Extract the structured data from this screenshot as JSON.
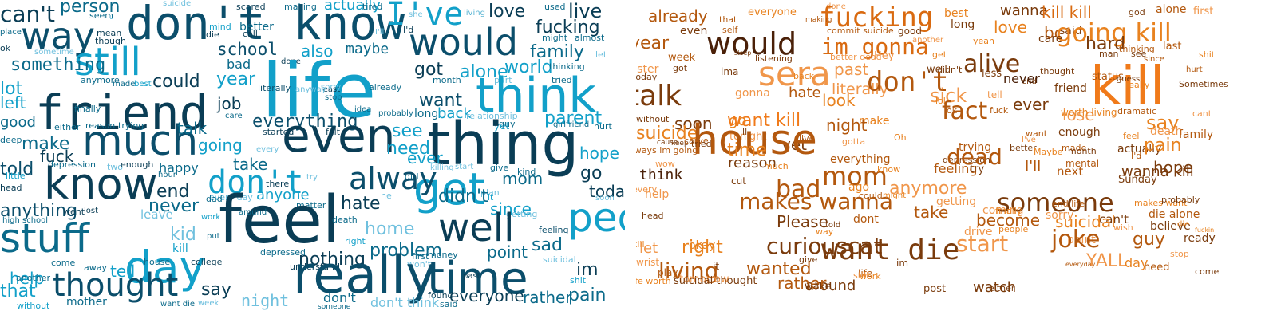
{
  "left_cloud": [
    [
      "person",
      "#0b6a8a"
    ],
    [
      "can't",
      "#0a3d55"
    ],
    [
      "seem",
      "#0b6a8a"
    ],
    [
      "u",
      "#5bb5d4"
    ],
    [
      "suicide",
      "#6fc0de"
    ],
    [
      "scared",
      "#0a3d55"
    ],
    [
      "making",
      "#0b6a8a"
    ],
    [
      "actually",
      "#12a0c9"
    ],
    [
      "tired",
      "#0b6a8a"
    ],
    [
      "she",
      "#6fc0de"
    ],
    [
      "living",
      "#5bb5d4"
    ],
    [
      "used",
      "#0b6a8a"
    ],
    [
      "love",
      "#0a3d55"
    ],
    [
      "live",
      "#0a3d55"
    ],
    [
      "way",
      "#0b4e6b"
    ],
    [
      "don't know",
      "#0b4e6b"
    ],
    [
      "I've",
      "#12a0c9"
    ],
    [
      "would",
      "#0b4e6b"
    ],
    [
      "fucking",
      "#0a3d55"
    ],
    [
      "still",
      "#12a0c9"
    ],
    [
      "place",
      "#0b6a8a"
    ],
    [
      "mean",
      "#0a3d55"
    ],
    [
      "though",
      "#0a3d55"
    ],
    [
      "mind",
      "#12a0c9"
    ],
    [
      "die",
      "#0a3d55"
    ],
    [
      "better",
      "#0b6a8a"
    ],
    [
      "call",
      "#0a3d55"
    ],
    [
      "I'll",
      "#6fc0de"
    ],
    [
      "I'd",
      "#0a3d55"
    ],
    [
      "might",
      "#0b6a8a"
    ],
    [
      "almost",
      "#0b6a8a"
    ],
    [
      "ok",
      "#0a3d55"
    ],
    [
      "sometime",
      "#6fc0de"
    ],
    [
      "family",
      "#0b6a8a"
    ],
    [
      "let",
      "#6fc0de"
    ],
    [
      "something",
      "#0b6a8a"
    ],
    [
      "school",
      "#0b4e6b"
    ],
    [
      "also",
      "#12a0c9"
    ],
    [
      "maybe",
      "#0b6a8a"
    ],
    [
      "bad",
      "#0b6a8a"
    ],
    [
      "done",
      "#0a3d55"
    ],
    [
      "world",
      "#12a0c9"
    ],
    [
      "lot",
      "#12a0c9"
    ],
    [
      "anymore",
      "#0b6a8a"
    ],
    [
      "made",
      "#0b6a8a"
    ],
    [
      "best",
      "#12a0c9"
    ],
    [
      "could",
      "#0a3d55"
    ],
    [
      "life",
      "#12a0c9"
    ],
    [
      "got",
      "#0a3d55"
    ],
    [
      "alone",
      "#12a0c9"
    ],
    [
      "thinking",
      "#0b6a8a"
    ],
    [
      "left",
      "#12a0c9"
    ],
    [
      "literally",
      "#0b4e6b"
    ],
    [
      "least",
      "#0a3d55"
    ],
    [
      "already",
      "#0b6a8a"
    ],
    [
      "part",
      "#6fc0de"
    ],
    [
      "tried",
      "#0b6a8a"
    ],
    [
      "friend",
      "#0a3d55"
    ],
    [
      "year",
      "#12a0c9"
    ],
    [
      "sorry",
      "#6fc0de"
    ],
    [
      "month",
      "#0b6a8a"
    ],
    [
      "think",
      "#12a0c9"
    ],
    [
      "finally",
      "#0b6a8a"
    ],
    [
      "job",
      "#0a3d55"
    ],
    [
      "anyway",
      "#6fc0de"
    ],
    [
      "stop",
      "#0b6a8a"
    ],
    [
      "want",
      "#0b4e6b"
    ],
    [
      "good",
      "#0b6a8a"
    ],
    [
      "either",
      "#0b6a8a"
    ],
    [
      "reason",
      "#0b6a8a"
    ],
    [
      "trying",
      "#0b6a8a"
    ],
    [
      "care",
      "#0b6a8a"
    ],
    [
      "idea",
      "#0b6a8a"
    ],
    [
      "probably",
      "#0b6a8a"
    ],
    [
      "long",
      "#0b6a8a"
    ],
    [
      "back",
      "#12a0c9"
    ],
    [
      "relationship",
      "#6fc0de"
    ],
    [
      "parent",
      "#12a0c9"
    ],
    [
      "much",
      "#0b4e6b"
    ],
    [
      "everything",
      "#0b4e6b"
    ],
    [
      "started",
      "#0a3d55"
    ],
    [
      "felt",
      "#0a3d55"
    ],
    [
      "guy",
      "#0b6a8a"
    ],
    [
      "yet",
      "#12a0c9"
    ],
    [
      "girlfriend",
      "#0b6a8a"
    ],
    [
      "hurt",
      "#0b6a8a"
    ],
    [
      "deep",
      "#0b6a8a"
    ],
    [
      "talk",
      "#0b6a8a"
    ],
    [
      "see",
      "#12a0c9"
    ],
    [
      "make",
      "#0b6a8a"
    ],
    [
      "even",
      "#0a3d55"
    ],
    [
      "thing",
      "#0a3d55"
    ],
    [
      "going",
      "#12a0c9"
    ],
    [
      "every",
      "#6fc0de"
    ],
    [
      "need",
      "#12a0c9"
    ],
    [
      "fuck",
      "#0a3d55"
    ],
    [
      "depression",
      "#0b6a8a"
    ],
    [
      "two",
      "#6fc0de"
    ],
    [
      "enough",
      "#0a3d55"
    ],
    [
      "take",
      "#0b6a8a"
    ],
    [
      "ever",
      "#12a0c9"
    ],
    [
      "hope",
      "#12a0c9"
    ],
    [
      "told",
      "#0b4e6b"
    ],
    [
      "happy",
      "#0b6a8a"
    ],
    [
      "get",
      "#12a0c9"
    ],
    [
      "girl",
      "#0b6a8a"
    ],
    [
      "little",
      "#12a0c9"
    ],
    [
      "know",
      "#0a3d55"
    ],
    [
      "don't",
      "#12a0c9"
    ],
    [
      "try",
      "#6fc0de"
    ],
    [
      "killing",
      "#6fc0de"
    ],
    [
      "start",
      "#6fc0de"
    ],
    [
      "give",
      "#0b6a8a"
    ],
    [
      "kind",
      "#0b6a8a"
    ],
    [
      "go",
      "#0a3d55"
    ],
    [
      "end",
      "#0a3d55"
    ],
    [
      "hour",
      "#0b6a8a"
    ],
    [
      "there",
      "#0a3d55"
    ],
    [
      "alway",
      "#0b4e6b"
    ],
    [
      "mom",
      "#0b6a8a"
    ],
    [
      "head",
      "#0a3d55"
    ],
    [
      "anyone",
      "#12a0c9"
    ],
    [
      "every day",
      "#6fc0de"
    ],
    [
      "matter",
      "#0b6a8a"
    ],
    [
      "he",
      "#6fc0de"
    ],
    [
      "plan",
      "#6fc0de"
    ],
    [
      "today",
      "#0a3d55"
    ],
    [
      "anything",
      "#0b4e6b"
    ],
    [
      "dad",
      "#0b6a8a"
    ],
    [
      "never",
      "#0b6a8a"
    ],
    [
      "feel",
      "#0a3d55"
    ],
    [
      "hate",
      "#0a3d55"
    ],
    [
      "since",
      "#12a0c9"
    ],
    [
      "soon",
      "#6fc0de"
    ],
    [
      "high school",
      "#0b6a8a"
    ],
    [
      "went",
      "#0a3d55"
    ],
    [
      "lost",
      "#0a3d55"
    ],
    [
      "leave",
      "#6fc0de"
    ],
    [
      "around",
      "#0b6a8a"
    ],
    [
      "death",
      "#0b6a8a"
    ],
    [
      "didn't",
      "#0b6a8a"
    ],
    [
      "getting",
      "#6fc0de"
    ],
    [
      "it",
      "#12a0c9"
    ],
    [
      "people",
      "#12a0c9"
    ],
    [
      "stuff",
      "#0b6a8a"
    ],
    [
      "work",
      "#12a0c9"
    ],
    [
      "well",
      "#0a3d55"
    ],
    [
      "kid",
      "#6fc0de"
    ],
    [
      "right",
      "#12a0c9"
    ],
    [
      "home",
      "#6fc0de"
    ],
    [
      "feeling",
      "#0b4e6b"
    ],
    [
      "sad",
      "#0b6a8a"
    ],
    [
      "put",
      "#0b6a8a"
    ],
    [
      "kill",
      "#12a0c9"
    ],
    [
      "day",
      "#12a0c9"
    ],
    [
      "nothing",
      "#0a3d55"
    ],
    [
      "problem",
      "#0b6a8a"
    ],
    [
      "point",
      "#0b6a8a"
    ],
    [
      "tell",
      "#12a0c9"
    ],
    [
      "house",
      "#0b6a8a"
    ],
    [
      "college",
      "#0a3d55"
    ],
    [
      "depressed",
      "#0b6a8a"
    ],
    [
      "money",
      "#0b6a8a"
    ],
    [
      "first",
      "#0b6a8a"
    ],
    [
      "won't",
      "#6fc0de"
    ],
    [
      "suicidal",
      "#6fc0de"
    ],
    [
      "help",
      "#12a0c9"
    ],
    [
      "come",
      "#0b6a8a"
    ],
    [
      "away",
      "#0b6a8a"
    ],
    [
      "understand",
      "#0a3d55"
    ],
    [
      "im",
      "#0a3d55"
    ],
    [
      "thought",
      "#0b4e6b"
    ],
    [
      "really",
      "#0b4e6b"
    ],
    [
      "time",
      "#0b4e6b"
    ],
    [
      "say",
      "#0a3d55"
    ],
    [
      "past",
      "#0a3d55"
    ],
    [
      "another",
      "#0b6a8a"
    ],
    [
      "that",
      "#12a0c9"
    ],
    [
      "found",
      "#0a3d55"
    ],
    [
      "everyone",
      "#0a3d55"
    ],
    [
      "rather",
      "#0b6a8a"
    ],
    [
      "pain",
      "#0b6a8a"
    ],
    [
      "shit",
      "#12a0c9"
    ],
    [
      "without",
      "#12a0c9"
    ],
    [
      "mother",
      "#0b6a8a"
    ],
    [
      "want die",
      "#0b6a8a"
    ],
    [
      "week",
      "#6fc0de"
    ],
    [
      "night",
      "#6fc0de"
    ],
    [
      "don't",
      "#0b6a8a"
    ],
    [
      "someone",
      "#0b6a8a"
    ],
    [
      "don't think",
      "#6fc0de"
    ],
    [
      "said",
      "#0b6a8a"
    ],
    [
      "wanted",
      "#0a3d55"
    ]
  ],
  "right_cloud": [
    [
      "already",
      "#b3580e"
    ],
    [
      "everyone",
      "#e8821f"
    ],
    [
      "done",
      "#f0964a"
    ],
    [
      "fucking",
      "#d96a10"
    ],
    [
      "best",
      "#e8821f"
    ],
    [
      "wanna",
      "#7a3b0c"
    ],
    [
      "kill kill",
      "#d96a10"
    ],
    [
      "god",
      "#7a3b0c"
    ],
    [
      "alone",
      "#b3580e"
    ],
    [
      "first",
      "#f0964a"
    ],
    [
      "that",
      "#b3580e"
    ],
    [
      "making",
      "#b3580e"
    ],
    [
      "self",
      "#b3580e"
    ],
    [
      "commit suicide",
      "#b3580e"
    ],
    [
      "good",
      "#7a3b0c"
    ],
    [
      "long",
      "#7a3b0c"
    ],
    [
      "love",
      "#e8821f"
    ],
    [
      "bc",
      "#b3580e"
    ],
    [
      "even",
      "#7a3b0c"
    ],
    [
      "another",
      "#f0964a"
    ],
    [
      "yeah",
      "#e8821f"
    ],
    [
      "said",
      "#7a3b0c"
    ],
    [
      "going kill",
      "#e8821f"
    ],
    [
      "would",
      "#4a2008"
    ],
    [
      "year",
      "#b3580e"
    ],
    [
      "im gonna",
      "#d96a10"
    ],
    [
      "care",
      "#7a3b0c"
    ],
    [
      "hard",
      "#7a3b0c"
    ],
    [
      "man",
      "#7a3b0c"
    ],
    [
      "kill",
      "#f07a1a"
    ],
    [
      "thinking",
      "#b3580e"
    ],
    [
      "last",
      "#b3580e"
    ],
    [
      "week",
      "#b3580e"
    ],
    [
      "get",
      "#e8821f"
    ],
    [
      "since",
      "#b3580e"
    ],
    [
      "past",
      "#f0964a"
    ],
    [
      "didn't",
      "#7a3b0c"
    ],
    [
      "alive",
      "#7a3b0c"
    ],
    [
      "sleep",
      "#7a3b0c"
    ],
    [
      "listening",
      "#7a3b0c"
    ],
    [
      "better dead",
      "#f0964a"
    ],
    [
      "Hey",
      "#f0964a"
    ],
    [
      "well",
      "#7a3b0c"
    ],
    [
      "less",
      "#7a3b0c"
    ],
    [
      "thought",
      "#7a3b0c"
    ],
    [
      "status",
      "#b3580e"
    ],
    [
      "see",
      "#7a3b0c"
    ],
    [
      "shit",
      "#e8821f"
    ],
    [
      "hurt",
      "#b3580e"
    ],
    [
      "sister",
      "#f0964a"
    ],
    [
      "sera",
      "#f0964a"
    ],
    [
      "got",
      "#7a3b0c"
    ],
    [
      "ima",
      "#7a3b0c"
    ],
    [
      "back",
      "#e8821f"
    ],
    [
      "literally",
      "#f0964a"
    ],
    [
      "end",
      "#7a3b0c"
    ],
    [
      "guess",
      "#7a3b0c"
    ],
    [
      "really",
      "#e8821f"
    ],
    [
      "today",
      "#7a3b0c"
    ],
    [
      "don't",
      "#b3580e"
    ],
    [
      "never",
      "#4a2008"
    ],
    [
      "Sometimes",
      "#7a3b0c"
    ],
    [
      "talk",
      "#7a3b0c"
    ],
    [
      "gonna",
      "#f0964a"
    ],
    [
      "hate",
      "#b3580e"
    ],
    [
      "sick",
      "#f0964a"
    ],
    [
      "friend",
      "#7a3b0c"
    ],
    [
      "tell",
      "#f0964a"
    ],
    [
      "look",
      "#e8821f"
    ],
    [
      "lol",
      "#e8821f"
    ],
    [
      "ever",
      "#7a3b0c"
    ],
    [
      "dramatic",
      "#b3580e"
    ],
    [
      "without",
      "#7a3b0c"
    ],
    [
      "make",
      "#e8821f"
    ],
    [
      "ok",
      "#b3580e"
    ],
    [
      "lose",
      "#f0964a"
    ],
    [
      "fuck",
      "#b3580e"
    ],
    [
      "worth living",
      "#e8821f"
    ],
    [
      "say",
      "#e8821f"
    ],
    [
      "cant",
      "#f0964a"
    ],
    [
      "soon",
      "#7a3b0c"
    ],
    [
      "go",
      "#e8821f"
    ],
    [
      "want kill",
      "#f07a1a"
    ],
    [
      "night",
      "#b3580e"
    ],
    [
      "yet",
      "#7a3b0c"
    ],
    [
      "suicide",
      "#e8821f"
    ],
    [
      "tonight",
      "#f0964a"
    ],
    [
      "live",
      "#b3580e"
    ],
    [
      "fact",
      "#b3580e"
    ],
    [
      "enough",
      "#7a3b0c"
    ],
    [
      "death",
      "#f0964a"
    ],
    [
      "cause",
      "#7a3b0c"
    ],
    [
      "keep",
      "#7a3b0c"
    ],
    [
      "gotta",
      "#f0964a"
    ],
    [
      "Oh",
      "#e8821f"
    ],
    [
      "want",
      "#b3580e"
    ],
    [
      "made",
      "#b3580e"
    ],
    [
      "actually",
      "#7a3b0c"
    ],
    [
      "feel",
      "#e8821f"
    ],
    [
      "family",
      "#b3580e"
    ],
    [
      "house",
      "#b3580e"
    ],
    [
      "carve",
      "#b3580e"
    ],
    [
      "tried",
      "#7a3b0c"
    ],
    [
      "ill",
      "#7a3b0c"
    ],
    [
      "depression",
      "#7a3b0c"
    ],
    [
      "I've",
      "#f0964a"
    ],
    [
      "trying",
      "#b3580e"
    ],
    [
      "better",
      "#7a3b0c"
    ],
    [
      "Maybe",
      "#e8821f"
    ],
    [
      "month",
      "#7a3b0c"
    ],
    [
      "mental",
      "#b3580e"
    ],
    [
      "always im going",
      "#b3580e"
    ],
    [
      "dead",
      "#b3580e"
    ],
    [
      "pain",
      "#e8821f"
    ],
    [
      "time",
      "#e8821f"
    ],
    [
      "reason",
      "#7a3b0c"
    ],
    [
      "wow",
      "#f0964a"
    ],
    [
      "much",
      "#e8821f"
    ],
    [
      "everything",
      "#b3580e"
    ],
    [
      "feeling",
      "#b3580e"
    ],
    [
      "I'll",
      "#b3580e"
    ],
    [
      "I'd",
      "#b3580e"
    ],
    [
      "hope",
      "#7a3b0c"
    ],
    [
      "think",
      "#4a2008"
    ],
    [
      "mom",
      "#b3580e"
    ],
    [
      "know",
      "#e8821f"
    ],
    [
      "try",
      "#7a3b0c"
    ],
    [
      "next",
      "#b3580e"
    ],
    [
      "Sunday",
      "#7a3b0c"
    ],
    [
      "wanna kill",
      "#7a3b0c"
    ],
    [
      "every",
      "#f0964a"
    ],
    [
      "help",
      "#f0964a"
    ],
    [
      "makes wanna",
      "#b3580e"
    ],
    [
      "cut",
      "#7a3b0c"
    ],
    [
      "bad",
      "#b3580e"
    ],
    [
      "ago",
      "#e8821f"
    ],
    [
      "could",
      "#b3580e"
    ],
    [
      "might",
      "#e8821f"
    ],
    [
      "anymore",
      "#f0964a"
    ],
    [
      "getting",
      "#f0964a"
    ],
    [
      "coming",
      "#f0964a"
    ],
    [
      "someone",
      "#7a3b0c"
    ],
    [
      "end life",
      "#b3580e"
    ],
    [
      "makes want",
      "#e8821f"
    ],
    [
      "die alone",
      "#b3580e"
    ],
    [
      "probably",
      "#7a3b0c"
    ],
    [
      "head",
      "#7a3b0c"
    ],
    [
      "Please",
      "#7a3b0c"
    ],
    [
      "told",
      "#7a3b0c"
    ],
    [
      "dont",
      "#b3580e"
    ],
    [
      "take",
      "#b3580e"
    ],
    [
      "finally",
      "#e8821f"
    ],
    [
      "drive",
      "#f0964a"
    ],
    [
      "become",
      "#b3580e"
    ],
    [
      "sorry",
      "#f0964a"
    ],
    [
      "can't",
      "#7a3b0c"
    ],
    [
      "believe",
      "#7a3b0c"
    ],
    [
      "die",
      "#e8821f"
    ],
    [
      "wish",
      "#f0964a"
    ],
    [
      "suicidal",
      "#e8821f"
    ],
    [
      "people",
      "#e8821f"
    ],
    [
      "kill",
      "#e8821f"
    ],
    [
      "okay",
      "#e8821f"
    ],
    [
      "let",
      "#f0964a"
    ],
    [
      "play",
      "#b3580e"
    ],
    [
      "curiouscat",
      "#7a3b0c"
    ],
    [
      "way",
      "#e8821f"
    ],
    [
      "want die",
      "#7a3b0c"
    ],
    [
      "start",
      "#f0964a"
    ],
    [
      "point",
      "#f0964a"
    ],
    [
      "fuckin",
      "#e8821f"
    ],
    [
      "joke",
      "#b3580e"
    ],
    [
      "guy",
      "#b3580e"
    ],
    [
      "ready",
      "#7a3b0c"
    ],
    [
      "wrist",
      "#f0964a"
    ],
    [
      "right",
      "#e8821f"
    ],
    [
      "living",
      "#b3580e"
    ],
    [
      "it",
      "#7a3b0c"
    ],
    [
      "wanted",
      "#b3580e"
    ],
    [
      "give",
      "#7a3b0c"
    ],
    [
      "around",
      "#7a3b0c"
    ],
    [
      "life",
      "#b3580e"
    ],
    [
      "im",
      "#7a3b0c"
    ],
    [
      "everyday",
      "#b3580e"
    ],
    [
      "YALL",
      "#f0964a"
    ],
    [
      "day",
      "#e8821f"
    ],
    [
      "need",
      "#b3580e"
    ],
    [
      "stop",
      "#f0964a"
    ],
    [
      "come",
      "#7a3b0c"
    ],
    [
      "life worth",
      "#e8821f"
    ],
    [
      "tomorrow",
      "#f0964a"
    ],
    [
      "suicidal thought",
      "#7a3b0c"
    ],
    [
      "rather",
      "#b3580e"
    ],
    [
      "wake",
      "#7a3b0c"
    ],
    [
      "still",
      "#f0964a"
    ],
    [
      "work",
      "#e8821f"
    ],
    [
      "post",
      "#7a3b0c"
    ],
    [
      "watch",
      "#7a3b0c"
    ],
    [
      "either",
      "#7a3b0c"
    ]
  ]
}
